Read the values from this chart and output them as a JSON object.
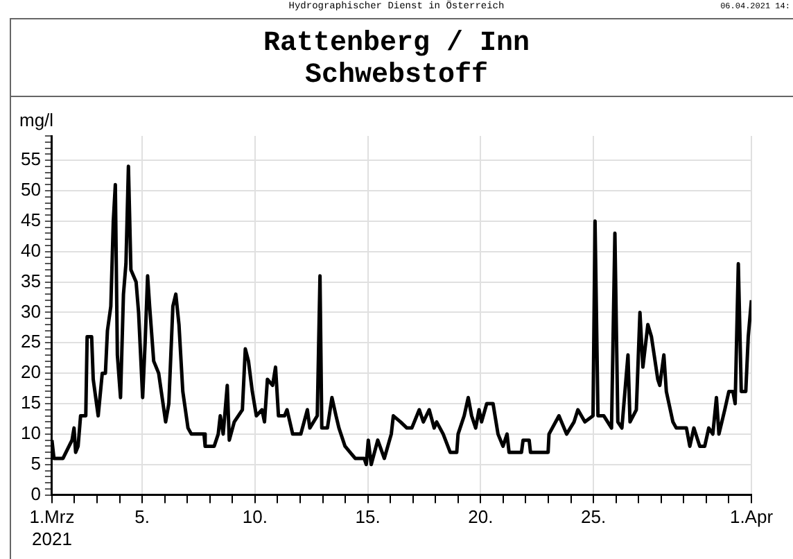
{
  "chart_data": {
    "type": "line",
    "title": "Rattenberg / Inn",
    "subtitle": "Schwebstoff",
    "ylabel": "mg/l",
    "annotations": [
      "Hydrographischer Dienst in Österreich",
      "06.04.2021 14:"
    ],
    "xlim": [
      1,
      32
    ],
    "xticks": [
      {
        "value": 1,
        "label": "1.Mrz\n2021"
      },
      {
        "value": 2,
        "label": null
      },
      {
        "value": 3,
        "label": null
      },
      {
        "value": 4,
        "label": null
      },
      {
        "value": 5,
        "label": "5."
      },
      {
        "value": 6,
        "label": null
      },
      {
        "value": 7,
        "label": null
      },
      {
        "value": 8,
        "label": null
      },
      {
        "value": 9,
        "label": null
      },
      {
        "value": 10,
        "label": "10."
      },
      {
        "value": 11,
        "label": null
      },
      {
        "value": 12,
        "label": null
      },
      {
        "value": 13,
        "label": null
      },
      {
        "value": 14,
        "label": null
      },
      {
        "value": 15,
        "label": "15."
      },
      {
        "value": 16,
        "label": null
      },
      {
        "value": 17,
        "label": null
      },
      {
        "value": 18,
        "label": null
      },
      {
        "value": 19,
        "label": null
      },
      {
        "value": 20,
        "label": "20."
      },
      {
        "value": 21,
        "label": null
      },
      {
        "value": 22,
        "label": null
      },
      {
        "value": 23,
        "label": null
      },
      {
        "value": 24,
        "label": null
      },
      {
        "value": 25,
        "label": "25."
      },
      {
        "value": 26,
        "label": null
      },
      {
        "value": 27,
        "label": null
      },
      {
        "value": 28,
        "label": null
      },
      {
        "value": 29,
        "label": null
      },
      {
        "value": 30,
        "label": null
      },
      {
        "value": 31,
        "label": null
      },
      {
        "value": 32,
        "label": "1.Apr"
      }
    ],
    "ylim": [
      0,
      59
    ],
    "yticks": [
      0,
      {
        "value": 1,
        "label": null
      },
      {
        "value": 2,
        "label": null
      },
      {
        "value": 3,
        "label": null
      },
      {
        "value": 4,
        "label": null
      },
      5,
      {
        "value": 6,
        "label": null
      },
      {
        "value": 7,
        "label": null
      },
      {
        "value": 8,
        "label": null
      },
      {
        "value": 9,
        "label": null
      },
      10,
      {
        "value": 11,
        "label": null
      },
      {
        "value": 12,
        "label": null
      },
      {
        "value": 13,
        "label": null
      },
      {
        "value": 14,
        "label": null
      },
      15,
      {
        "value": 16,
        "label": null
      },
      {
        "value": 17,
        "label": null
      },
      {
        "value": 18,
        "label": null
      },
      {
        "value": 19,
        "label": null
      },
      20,
      {
        "value": 21,
        "label": null
      },
      {
        "value": 22,
        "label": null
      },
      {
        "value": 23,
        "label": null
      },
      {
        "value": 24,
        "label": null
      },
      25,
      {
        "value": 26,
        "label": null
      },
      {
        "value": 27,
        "label": null
      },
      {
        "value": 28,
        "label": null
      },
      {
        "value": 29,
        "label": null
      },
      30,
      {
        "value": 31,
        "label": null
      },
      {
        "value": 32,
        "label": null
      },
      {
        "value": 33,
        "label": null
      },
      {
        "value": 34,
        "label": null
      },
      35,
      {
        "value": 36,
        "label": null
      },
      {
        "value": 37,
        "label": null
      },
      {
        "value": 38,
        "label": null
      },
      {
        "value": 39,
        "label": null
      },
      40,
      {
        "value": 41,
        "label": null
      },
      {
        "value": 42,
        "label": null
      },
      {
        "value": 43,
        "label": null
      },
      {
        "value": 44,
        "label": null
      },
      45,
      {
        "value": 46,
        "label": null
      },
      {
        "value": 47,
        "label": null
      },
      {
        "value": 48,
        "label": null
      },
      {
        "value": 49,
        "label": null
      },
      50,
      {
        "value": 51,
        "label": null
      },
      {
        "value": 52,
        "label": null
      },
      {
        "value": 53,
        "label": null
      },
      {
        "value": 54,
        "label": null
      },
      55,
      {
        "value": 56,
        "label": null
      },
      {
        "value": 57,
        "label": null
      },
      {
        "value": 58,
        "label": null
      },
      {
        "value": 59,
        "label": null
      }
    ],
    "grid": true,
    "legend": false,
    "marker": "none",
    "line_style": "solid",
    "series": [
      {
        "color": "#000000",
        "x": [
          1.0,
          1.09,
          1.49,
          1.89,
          1.98,
          2.05,
          2.16,
          2.27,
          2.5,
          2.56,
          2.76,
          2.83,
          3.05,
          3.23,
          3.37,
          3.46,
          3.61,
          3.72,
          3.81,
          3.9,
          4.04,
          4.17,
          4.28,
          4.39,
          4.5,
          4.73,
          4.84,
          5.02,
          5.13,
          5.24,
          5.33,
          5.51,
          5.73,
          6.04,
          6.18,
          6.36,
          6.49,
          6.63,
          6.8,
          7.03,
          7.18,
          7.74,
          7.79,
          8.19,
          8.37,
          8.46,
          8.59,
          8.77,
          8.86,
          9.08,
          9.44,
          9.57,
          9.71,
          9.88,
          10.06,
          10.31,
          10.42,
          10.55,
          10.78,
          10.91,
          11.04,
          11.31,
          11.42,
          11.67,
          12.03,
          12.32,
          12.43,
          12.76,
          12.88,
          12.96,
          13.21,
          13.41,
          13.59,
          13.72,
          13.99,
          14.44,
          14.84,
          14.93,
          15.02,
          15.15,
          15.44,
          15.73,
          16.04,
          16.13,
          16.45,
          16.73,
          16.95,
          17.28,
          17.46,
          17.72,
          17.94,
          18.05,
          18.34,
          18.65,
          18.94,
          19.0,
          19.27,
          19.45,
          19.6,
          19.78,
          19.93,
          20.04,
          20.27,
          20.55,
          20.77,
          20.99,
          21.17,
          21.26,
          21.81,
          21.88,
          22.15,
          22.21,
          22.99,
          23.03,
          23.47,
          23.81,
          24.14,
          24.31,
          24.62,
          24.98,
          25.07,
          25.2,
          25.46,
          25.8,
          25.95,
          26.08,
          26.26,
          26.53,
          26.62,
          26.9,
          27.06,
          27.19,
          27.41,
          27.57,
          27.85,
          27.94,
          28.12,
          28.23,
          28.52,
          28.67,
          29.12,
          29.27,
          29.45,
          29.71,
          29.93,
          30.11,
          30.29,
          30.45,
          30.56,
          30.82,
          31.0,
          31.18,
          31.28,
          31.42,
          31.55,
          31.75,
          31.86,
          32.0
        ],
        "values": [
          9,
          6,
          6,
          9,
          11,
          7,
          8,
          13,
          13,
          26,
          26,
          19,
          13,
          20,
          20,
          27,
          31,
          45,
          51,
          23,
          16,
          33,
          38,
          54,
          37,
          35,
          30,
          16,
          25,
          36,
          31,
          22,
          20,
          12,
          15,
          31,
          33,
          28,
          17,
          11,
          10,
          10,
          8,
          8,
          10,
          13,
          10,
          18,
          9,
          12,
          14,
          24,
          22,
          17,
          13,
          14,
          12,
          19,
          18,
          21,
          13,
          13,
          14,
          10,
          10,
          14,
          11,
          13,
          36,
          11,
          11,
          16,
          13,
          11,
          8,
          6,
          6,
          5,
          9,
          5,
          9,
          6,
          10,
          13,
          12,
          11,
          11,
          14,
          12,
          14,
          11,
          12,
          10,
          7,
          7,
          10,
          13,
          16,
          13,
          11,
          14,
          12,
          15,
          15,
          10,
          8,
          10,
          7,
          7,
          9,
          9,
          7,
          7,
          10,
          13,
          10,
          12,
          14,
          12,
          13,
          45,
          13,
          13,
          11,
          43,
          12,
          11,
          23,
          12,
          14,
          30,
          21,
          28,
          26,
          19,
          18,
          23,
          17,
          12,
          11,
          11,
          8,
          11,
          8,
          8,
          11,
          10,
          16,
          10,
          14,
          17,
          17,
          15,
          38,
          17,
          17,
          26,
          32
        ]
      }
    ]
  }
}
